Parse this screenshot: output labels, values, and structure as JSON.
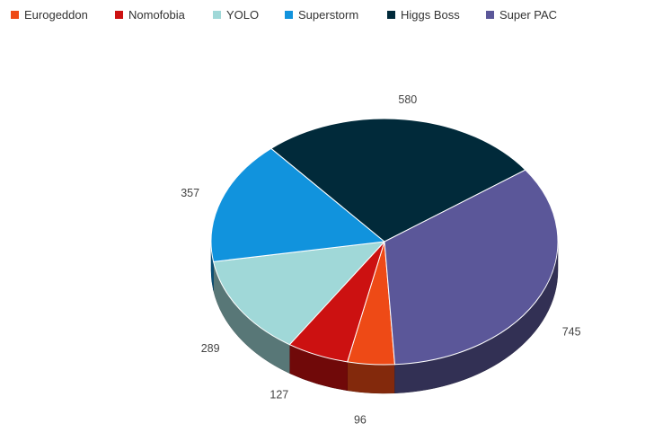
{
  "chart_data": {
    "type": "pie",
    "style": "3d",
    "title": "",
    "legend_position": "top",
    "categories": [
      "Eurogeddon",
      "Nomofobia",
      "YOLO",
      "Superstorm",
      "Higgs Boss",
      "Super PAC"
    ],
    "values": [
      96,
      127,
      289,
      357,
      580,
      745
    ],
    "colors": [
      "#EE4A16",
      "#CC1111",
      "#A0D8D8",
      "#1193DD",
      "#012A3A",
      "#5B5799"
    ],
    "data_labels": [
      "96",
      "127",
      "289",
      "357",
      "580",
      "745"
    ]
  }
}
